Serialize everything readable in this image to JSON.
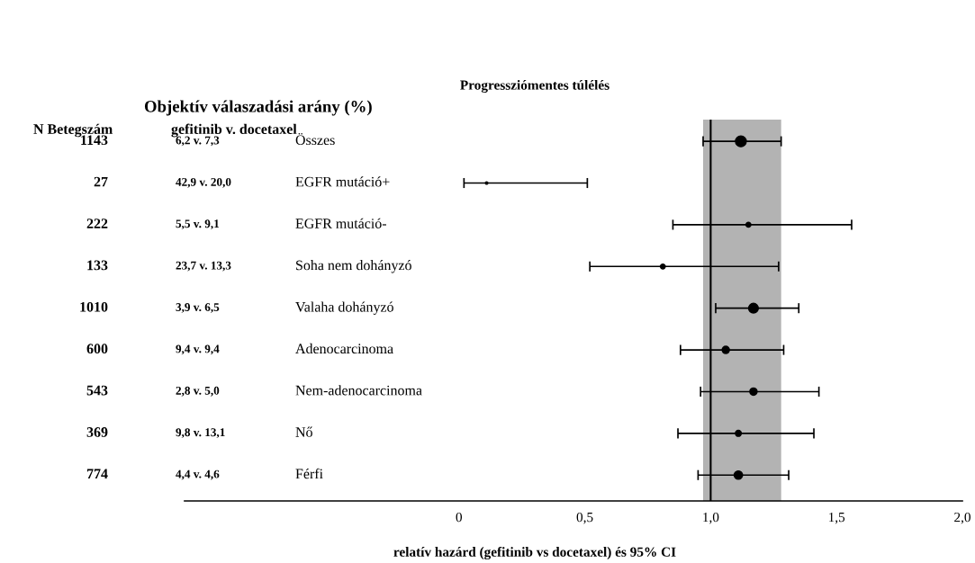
{
  "chart_data": {
    "type": "bubble",
    "orientation": "horizontal",
    "title": "Progressziómentes túlélés",
    "xlabel": "relatív hazárd (gefitinib vs docetaxel) és 95% CI",
    "categories": [
      "Összes",
      "EGFR mutáció+",
      "EGFR mutáció-",
      "Soha nem dohányzó",
      "Valaha dohányzó",
      "Adenocarcinoma",
      "Nem-adenocarcinoma",
      "Nő",
      "Férfi"
    ],
    "values": [
      1.12,
      0.11,
      1.15,
      0.81,
      1.17,
      1.06,
      1.17,
      1.11,
      1.11
    ],
    "errors": [
      [
        0.97,
        1.28
      ],
      [
        0.02,
        0.51
      ],
      [
        0.85,
        1.56
      ],
      [
        0.52,
        1.27
      ],
      [
        1.02,
        1.35
      ],
      [
        0.88,
        1.29
      ],
      [
        0.96,
        1.43
      ],
      [
        0.87,
        1.41
      ],
      [
        0.95,
        1.31
      ]
    ],
    "sizes": [
      1,
      0.05,
      0.2,
      0.2,
      0.8,
      0.45,
      0.45,
      0.3,
      0.6
    ],
    "color": "#000000",
    "marker": "circle",
    "xlim": [
      -1.09,
      2.0
    ],
    "xticks": [
      {
        "value": 0,
        "label": "0"
      },
      {
        "value": 0.5,
        "label": "0,5"
      },
      {
        "value": 1.0,
        "label": "1,0"
      },
      {
        "value": 1.5,
        "label": "1,5"
      },
      {
        "value": 2.0,
        "label": "2,0"
      }
    ],
    "ref_lines": [
      {
        "axis": "x",
        "value": 1.0,
        "color": "#000000",
        "line_style": "solid"
      }
    ],
    "bands": [
      {
        "axis": "x",
        "from": 0.97,
        "to": 1.28,
        "color": "#b3b3b3"
      }
    ],
    "grid": false,
    "annotations": [
      "Objektív válaszadási arány (%)",
      "N Betegszám",
      "gefitinib v. docetaxel",
      "1143",
      "27",
      "222",
      "133",
      "1010",
      "600",
      "543",
      "369",
      "774",
      "6,2 v. 7,3",
      "42,9 v. 20,0",
      "5,5 v. 9,1",
      "23,7 v. 13,3",
      "3,9 v. 6,5",
      "9,4 v. 9,4",
      "2,8 v. 5,0",
      "9,8 v. 13,1",
      "4,4 v. 4,6"
    ]
  }
}
